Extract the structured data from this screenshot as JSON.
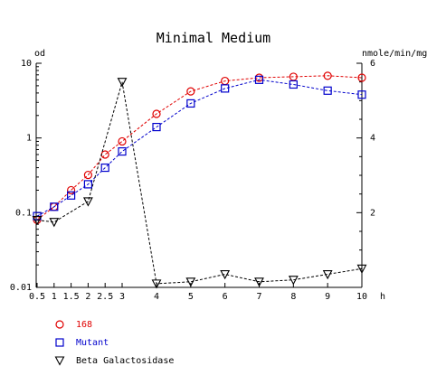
{
  "chart_data": {
    "type": "line",
    "title": "Minimal Medium",
    "xlabel": "h",
    "ylabel_left": "od",
    "ylabel_right": "nmole/min/mg",
    "x_ticks": [
      0.5,
      1,
      1.5,
      2,
      2.5,
      3,
      4,
      5,
      6,
      7,
      8,
      9,
      10
    ],
    "x_tick_labels": [
      "0.5",
      "1",
      "1.5",
      "2",
      "2.5",
      "3",
      "4",
      "5",
      "6",
      "7",
      "8",
      "9",
      "10"
    ],
    "x_axis_note": "x axis is not linear: 0.5-3 compressed, 3-10 expanded",
    "ylim_left": [
      0.01,
      10
    ],
    "left_scale": "log",
    "y_left_ticks": [
      0.01,
      0.1,
      1,
      10
    ],
    "y_left_tick_labels": [
      "0.01",
      "0.1",
      "1",
      "10"
    ],
    "ylim_right": [
      0,
      6
    ],
    "right_scale": "linear",
    "y_right_ticks": [
      2,
      4,
      6
    ],
    "y_right_tick_labels": [
      "2",
      "4",
      "6"
    ],
    "grid": false,
    "legend_position": "bottom-left",
    "series": [
      {
        "name": "168",
        "axis": "left",
        "color": "#e00000",
        "marker": "circle",
        "line": "dashed",
        "x": [
          0.5,
          1,
          1.5,
          2,
          2.5,
          3,
          4,
          5,
          6,
          7,
          8,
          9,
          10
        ],
        "values": [
          0.08,
          0.12,
          0.2,
          0.32,
          0.6,
          0.9,
          2.1,
          4.2,
          5.8,
          6.4,
          6.6,
          6.8,
          6.4
        ]
      },
      {
        "name": "Mutant",
        "axis": "left",
        "color": "#0000cc",
        "marker": "square",
        "line": "dashed",
        "x": [
          0.5,
          1,
          1.5,
          2,
          2.5,
          3,
          4,
          5,
          6,
          7,
          8,
          9,
          10
        ],
        "values": [
          0.09,
          0.12,
          0.17,
          0.24,
          0.4,
          0.66,
          1.4,
          2.9,
          4.6,
          6.0,
          5.2,
          4.3,
          3.8
        ]
      },
      {
        "name": "Beta Galactosidase",
        "axis": "right",
        "color": "#000000",
        "marker": "triangle-down",
        "line": "dashed",
        "x": [
          0.5,
          1,
          2,
          3,
          4,
          5,
          6,
          7,
          8,
          9,
          10
        ],
        "values": [
          1.8,
          1.75,
          2.3,
          5.5,
          0.1,
          0.15,
          0.35,
          0.15,
          0.2,
          0.35,
          0.5
        ]
      }
    ]
  },
  "colors": {
    "axis": "#000000",
    "series_168": "#e00000",
    "series_mutant": "#0000cc",
    "series_beta": "#000000"
  }
}
